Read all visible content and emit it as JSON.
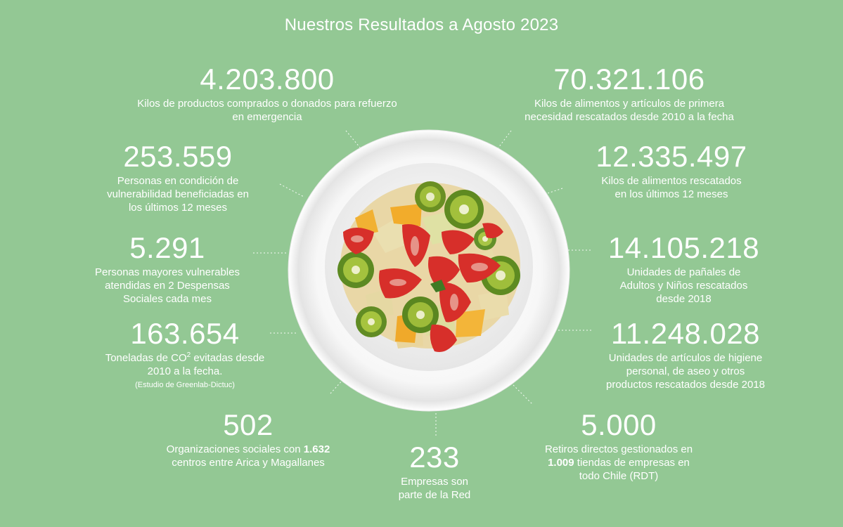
{
  "title": "Nuestros Resultados a Agosto 2023",
  "stats": [
    {
      "value": "4.203.800",
      "line1": "Kilos de productos comprados o donados para refuerzo",
      "line2": "en emergencia"
    },
    {
      "value": "70.321.106",
      "line1": "Kilos de alimentos y artículos de primera",
      "line2": "necesidad rescatados desde 2010 a la fecha"
    },
    {
      "value": "253.559",
      "line1": "Personas en condición de",
      "line2": "vulnerabilidad beneficiadas en",
      "line3": "los últimos 12 meses"
    },
    {
      "value": "12.335.497",
      "line1": "Kilos de alimentos rescatados",
      "line2": "en los últimos 12 meses"
    },
    {
      "value": "5.291",
      "line1": "Personas mayores vulnerables",
      "line2": "atendidas en 2 Despensas",
      "line3": "Sociales cada mes"
    },
    {
      "value": "14.105.218",
      "line1": "Unidades de pañales de",
      "line2": "Adultos y Niños rescatados",
      "line3": "desde 2018"
    },
    {
      "value": "163.654",
      "line1_a": "Toneladas de CO",
      "line1_sup": "2",
      "line1_b": " evitadas desde",
      "line2": "2010 a la fecha.",
      "note": "(Estudio de Greenlab-Dictuc)"
    },
    {
      "value": "11.248.028",
      "line1": "Unidades de artículos de higiene",
      "line2": "personal, de aseo y otros",
      "line3": "productos rescatados desde 2018"
    },
    {
      "value": "502",
      "line1_a": "Organizaciones sociales con ",
      "line1_bold": "1.632",
      "line2": "centros entre Arica y Magallanes"
    },
    {
      "value": "233",
      "line1": "Empresas son",
      "line2": "parte de la Red"
    },
    {
      "value": "5.000",
      "line1": "Retiros directos gestionados en",
      "line2_bold": "1.009",
      "line2_b": " tiendas de empresas en",
      "line3": "todo Chile (RDT)"
    }
  ],
  "colors": {
    "background": "#93c894",
    "text": "#ffffff",
    "plate": "#ffffff"
  },
  "image": {
    "subject": "plate-of-fruit-salad-icon"
  }
}
